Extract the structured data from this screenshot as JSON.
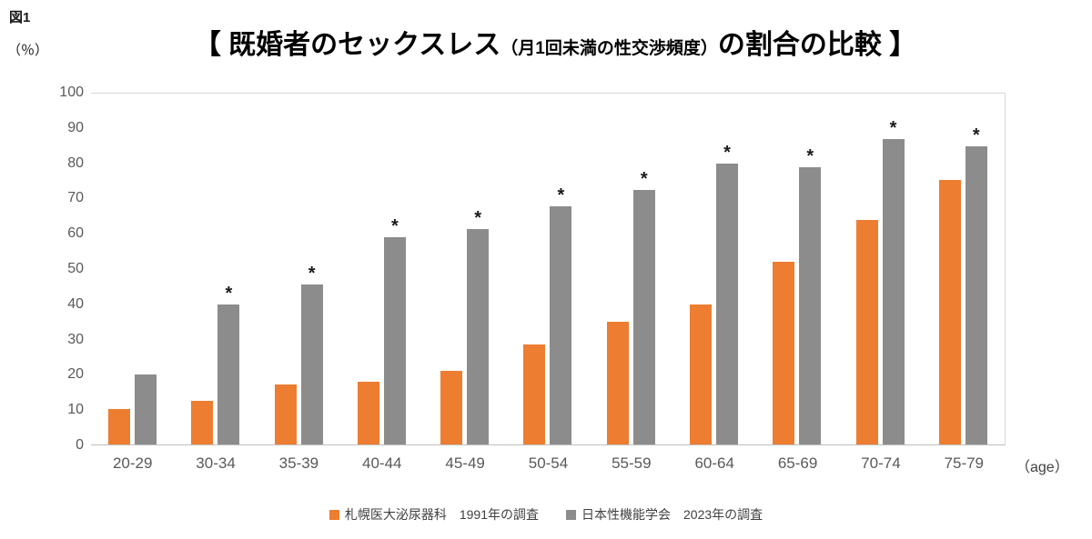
{
  "figure_label": "図1",
  "y_axis_unit": "（％）",
  "title": {
    "main_left": "【 既婚者のセックスレス",
    "sub": "（月1回未満の性交渉頻度）",
    "main_right": "の割合の比較 】"
  },
  "x_axis_unit": "（age）",
  "chart_data": {
    "type": "bar",
    "title": "既婚者のセックスレス（月1回未満の性交渉頻度）の割合の比較",
    "categories": [
      "20-29",
      "30-34",
      "35-39",
      "40-44",
      "45-49",
      "50-54",
      "55-59",
      "60-64",
      "65-69",
      "70-74",
      "75-79"
    ],
    "series": [
      {
        "name": "札幌医大泌尿器科　1991年の調査",
        "color": "#ED7D31",
        "values": [
          10,
          12.5,
          17,
          18,
          21,
          28.5,
          35,
          40,
          52,
          64,
          75.5
        ]
      },
      {
        "name": "日本性機能学会　2023年の調査",
        "color": "#8C8C8C",
        "values": [
          20,
          40,
          45.5,
          59,
          61.5,
          68,
          72.5,
          80,
          79,
          87,
          85
        ]
      }
    ],
    "significance_marker": "*",
    "marked_categories": [
      false,
      true,
      true,
      true,
      true,
      true,
      true,
      true,
      true,
      true,
      true
    ],
    "marker_on_series": 1,
    "ylabel": "％",
    "ylim": [
      0,
      100
    ],
    "y_ticks": [
      0,
      10,
      20,
      30,
      40,
      50,
      60,
      70,
      80,
      90,
      100
    ],
    "grid": "top boundary line only",
    "legend_position": "bottom"
  }
}
